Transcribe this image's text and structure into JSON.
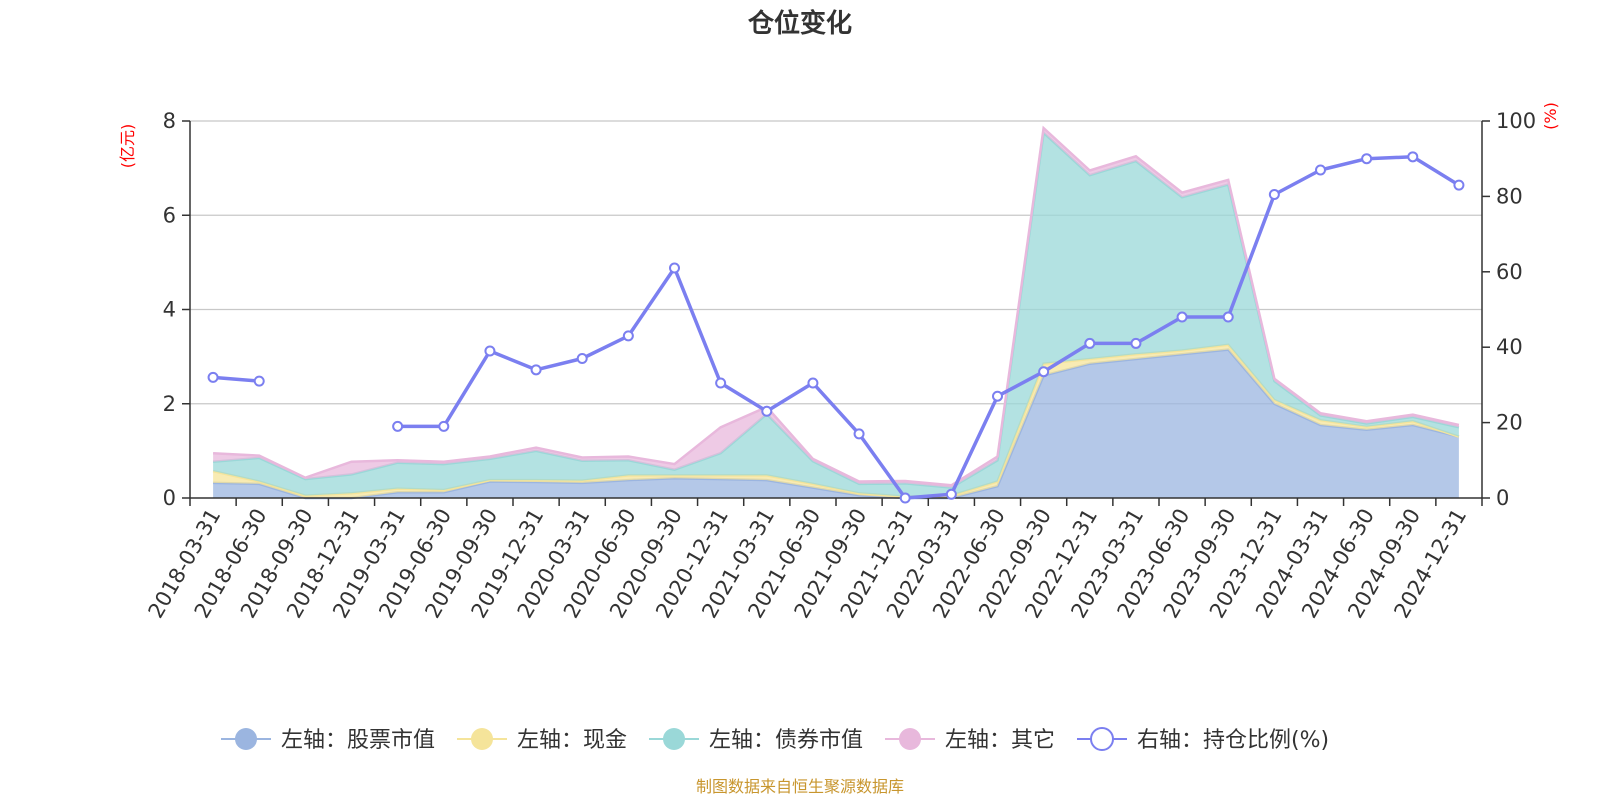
{
  "chart_data": {
    "type": "area",
    "title": "仓位变化",
    "source": "制图数据来自恒生聚源数据库",
    "left_axis": {
      "unit": "(亿元)",
      "min": 0,
      "max": 8,
      "ticks": [
        0,
        2,
        4,
        6,
        8
      ],
      "color": "#ff0000"
    },
    "right_axis": {
      "unit": "(%)",
      "min": 0,
      "max": 100,
      "ticks": [
        0,
        20,
        40,
        60,
        80,
        100
      ],
      "color": "#ff0000"
    },
    "categories": [
      "2018-03-31",
      "2018-06-30",
      "2018-09-30",
      "2018-12-31",
      "2019-03-31",
      "2019-06-30",
      "2019-09-30",
      "2019-12-31",
      "2020-03-31",
      "2020-06-30",
      "2020-09-30",
      "2020-12-31",
      "2021-03-31",
      "2021-06-30",
      "2021-09-30",
      "2021-12-31",
      "2022-03-31",
      "2022-06-30",
      "2022-09-30",
      "2022-12-31",
      "2023-03-31",
      "2023-06-30",
      "2023-09-30",
      "2023-12-31",
      "2024-03-31",
      "2024-06-30",
      "2024-09-30",
      "2024-12-31"
    ],
    "grid": true,
    "legend_position": "bottom",
    "series": [
      {
        "name": "左轴：股票市值",
        "axis": "left",
        "color": "#9bb5e0",
        "values": [
          0.32,
          0.3,
          null,
          null,
          0.12,
          0.12,
          0.35,
          0.34,
          0.32,
          0.38,
          0.42,
          0.4,
          0.38,
          0.22,
          0.06,
          0.0,
          0.0,
          0.25,
          2.6,
          2.85,
          2.95,
          3.05,
          3.15,
          2.0,
          1.55,
          1.45,
          1.55,
          1.3
        ]
      },
      {
        "name": "左轴：现金",
        "axis": "left",
        "color": "#f5e49a",
        "values": [
          0.25,
          0.05,
          0.05,
          0.1,
          0.08,
          0.05,
          0.03,
          0.04,
          0.05,
          0.1,
          0.06,
          0.08,
          0.1,
          0.08,
          0.04,
          0.03,
          0.05,
          0.1,
          0.25,
          0.1,
          0.1,
          0.08,
          0.1,
          0.08,
          0.1,
          0.06,
          0.08,
          0.0
        ]
      },
      {
        "name": "左轴：债券市值",
        "axis": "left",
        "color": "#9ad8d8",
        "values": [
          0.2,
          0.5,
          0.35,
          0.4,
          0.55,
          0.55,
          0.45,
          0.62,
          0.42,
          0.32,
          0.12,
          0.47,
          1.3,
          0.48,
          0.2,
          0.28,
          0.17,
          0.45,
          4.9,
          3.9,
          4.1,
          3.25,
          3.4,
          0.4,
          0.1,
          0.07,
          0.09,
          0.2
        ]
      },
      {
        "name": "左轴：其它",
        "axis": "left",
        "color": "#e8b8dc",
        "values": [
          0.18,
          0.05,
          0.03,
          0.27,
          0.05,
          0.05,
          0.05,
          0.07,
          0.07,
          0.08,
          0.12,
          0.55,
          0.15,
          0.05,
          0.05,
          0.05,
          0.05,
          0.08,
          0.1,
          0.1,
          0.1,
          0.1,
          0.1,
          0.05,
          0.05,
          0.05,
          0.05,
          0.05
        ]
      },
      {
        "name": "右轴：持仓比例(%)",
        "axis": "right",
        "color": "#7b7ff0",
        "values": [
          32,
          31,
          null,
          null,
          19,
          19,
          39,
          34,
          37,
          43,
          61,
          30.5,
          23,
          30.5,
          17,
          0,
          1,
          27,
          33.5,
          41,
          41,
          48,
          48,
          80.5,
          87,
          90,
          90.5,
          83
        ]
      }
    ]
  }
}
